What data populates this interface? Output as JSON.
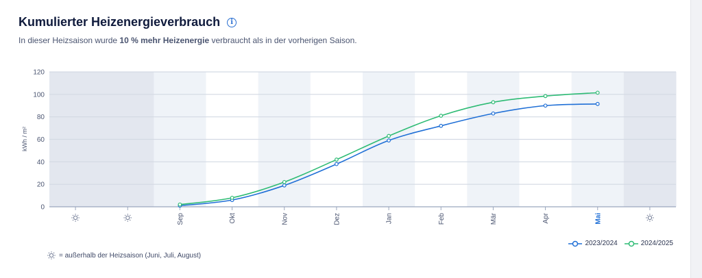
{
  "header": {
    "title": "Kumulierter Heizenergieverbrauch",
    "info_icon": "info-icon",
    "subtitle_pre": "In dieser Heizsaison wurde ",
    "subtitle_bold": "10 % mehr Heizenergie",
    "subtitle_post": " verbraucht als in der vorherigen Saison."
  },
  "colors": {
    "series_2023": "#1f6fd6",
    "series_2024": "#2dbb74",
    "band_out_season": "#e3e7ef",
    "band_light": "#eff3f8",
    "band_white": "#ffffff",
    "grid": "#d3d9e3",
    "axis": "#9aa6bd",
    "highlight_month": "#1f6fd6"
  },
  "chart_data": {
    "type": "line",
    "ylabel": "kWh / m²",
    "ylim": [
      0,
      120
    ],
    "yticks": [
      0,
      20,
      40,
      60,
      80,
      100,
      120
    ],
    "months": [
      "sun",
      "sun",
      "Sep",
      "Okt",
      "Nov",
      "Dez",
      "Jan",
      "Feb",
      "Mär",
      "Apr",
      "Mai",
      "sun"
    ],
    "highlighted_month": "Mai",
    "season_icon": "sun-icon",
    "series": [
      {
        "name": "2023/2024",
        "color": "#1f6fd6",
        "start_index": 2,
        "values": [
          1,
          6,
          19,
          38,
          59,
          72,
          83,
          90,
          91.5
        ]
      },
      {
        "name": "2024/2025",
        "color": "#2dbb74",
        "start_index": 2,
        "values": [
          2,
          8,
          22,
          42,
          63,
          81,
          93,
          98.5,
          101.5
        ]
      }
    ]
  },
  "legend": {
    "items": [
      {
        "label": "2023/2024",
        "color": "#1f6fd6"
      },
      {
        "label": "2024/2025",
        "color": "#2dbb74"
      }
    ]
  },
  "note": {
    "text": "= außerhalb der Heizsaison (Juni, Juli, August)",
    "icon": "sun-icon"
  }
}
